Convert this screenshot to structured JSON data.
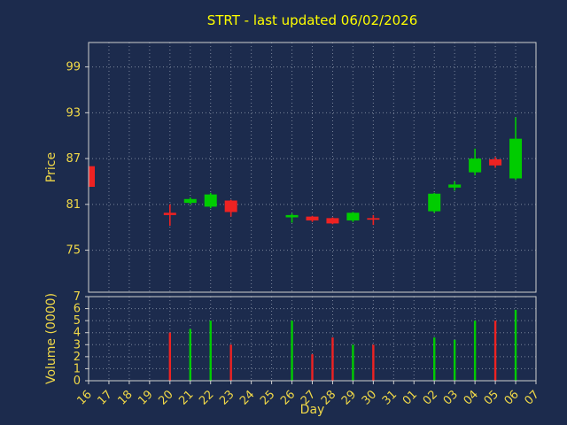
{
  "title": {
    "text": "STRT - last updated 06/02/2026"
  },
  "colors": {
    "background": "#1c2b4d",
    "title": "#ffff00",
    "tick_label": "#f0d848",
    "up": "#00cc00",
    "down": "#ee2222",
    "axis_spine": "#d0d0d0",
    "grid": "#c8d0dc"
  },
  "chart_data": [
    {
      "type": "candlestick",
      "title": "STRT - last updated 06/02/2026",
      "xlabel": "Day",
      "ylabel": "Price",
      "x_ticklabels": [
        "16",
        "17",
        "18",
        "19",
        "20",
        "21",
        "22",
        "23",
        "24",
        "25",
        "26",
        "27",
        "28",
        "29",
        "30",
        "31",
        "01",
        "02",
        "03",
        "04",
        "05",
        "06",
        "07"
      ],
      "yticks": [
        75,
        81,
        87,
        93,
        99
      ],
      "ylim": [
        69.5,
        102.2
      ],
      "grid": true,
      "candles": [
        {
          "day": "16",
          "open": 86.0,
          "high": 86.0,
          "low": 83.3,
          "close": 83.3
        },
        {
          "day": "20",
          "open": 79.9,
          "high": 81.0,
          "low": 78.2,
          "close": 79.6
        },
        {
          "day": "21",
          "open": 81.2,
          "high": 81.9,
          "low": 81.0,
          "close": 81.7
        },
        {
          "day": "22",
          "open": 80.7,
          "high": 82.5,
          "low": 80.5,
          "close": 82.3
        },
        {
          "day": "23",
          "open": 81.5,
          "high": 81.6,
          "low": 79.4,
          "close": 80.0
        },
        {
          "day": "26",
          "open": 79.3,
          "high": 79.8,
          "low": 78.6,
          "close": 79.6
        },
        {
          "day": "27",
          "open": 79.4,
          "high": 79.5,
          "low": 78.7,
          "close": 78.9
        },
        {
          "day": "28",
          "open": 79.2,
          "high": 79.3,
          "low": 78.4,
          "close": 78.5
        },
        {
          "day": "29",
          "open": 78.9,
          "high": 80.0,
          "low": 78.7,
          "close": 79.9
        },
        {
          "day": "30",
          "open": 79.2,
          "high": 79.6,
          "low": 78.3,
          "close": 79.0
        },
        {
          "day": "02",
          "open": 80.1,
          "high": 82.5,
          "low": 79.9,
          "close": 82.4
        },
        {
          "day": "03",
          "open": 83.2,
          "high": 84.0,
          "low": 82.8,
          "close": 83.6
        },
        {
          "day": "04",
          "open": 85.2,
          "high": 88.3,
          "low": 84.8,
          "close": 87.0
        },
        {
          "day": "05",
          "open": 86.9,
          "high": 87.2,
          "low": 85.8,
          "close": 86.1
        },
        {
          "day": "06",
          "open": 84.4,
          "high": 92.4,
          "low": 84.2,
          "close": 89.6
        }
      ]
    },
    {
      "type": "bar",
      "ylabel": "Volume (0000)",
      "yticks": [
        0,
        1,
        2,
        3,
        4,
        5,
        6,
        7
      ],
      "ylim": [
        0,
        7
      ],
      "grid": true,
      "values": [
        {
          "day": "20",
          "volume": 4.0,
          "direction": "down"
        },
        {
          "day": "21",
          "volume": 4.3,
          "direction": "up"
        },
        {
          "day": "22",
          "volume": 5.0,
          "direction": "up"
        },
        {
          "day": "23",
          "volume": 3.0,
          "direction": "down"
        },
        {
          "day": "26",
          "volume": 5.0,
          "direction": "up"
        },
        {
          "day": "27",
          "volume": 2.2,
          "direction": "down"
        },
        {
          "day": "28",
          "volume": 3.6,
          "direction": "down"
        },
        {
          "day": "29",
          "volume": 3.0,
          "direction": "up"
        },
        {
          "day": "30",
          "volume": 3.0,
          "direction": "down"
        },
        {
          "day": "02",
          "volume": 3.6,
          "direction": "up"
        },
        {
          "day": "03",
          "volume": 3.4,
          "direction": "up"
        },
        {
          "day": "04",
          "volume": 5.0,
          "direction": "up"
        },
        {
          "day": "05",
          "volume": 5.0,
          "direction": "down"
        },
        {
          "day": "06",
          "volume": 5.9,
          "direction": "up"
        }
      ]
    }
  ]
}
